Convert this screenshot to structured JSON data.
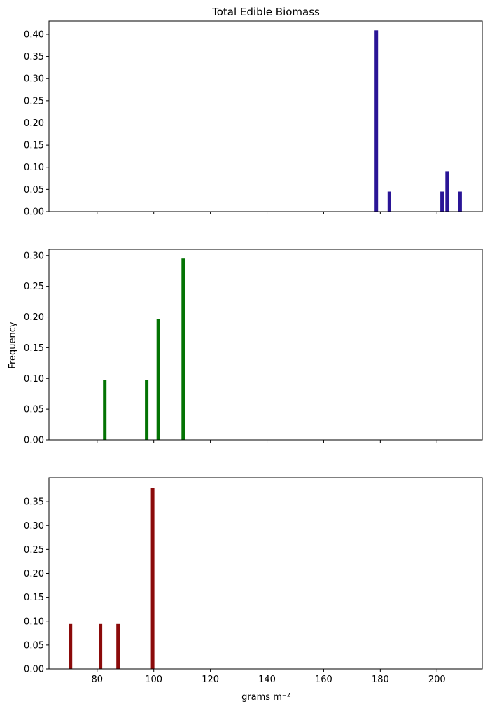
{
  "figure": {
    "title": "Total Edible Biomass",
    "ylabel": "Frequency",
    "xlabel": "grams m⁻²"
  },
  "chart_data": [
    {
      "type": "bar",
      "title": "Total Edible Biomass",
      "xlabel": "",
      "ylabel": "",
      "xlim": [
        63,
        216
      ],
      "ylim": [
        0,
        0.43
      ],
      "yticks": [
        0.0,
        0.05,
        0.1,
        0.15,
        0.2,
        0.25,
        0.3,
        0.35,
        0.4
      ],
      "ytick_labels": [
        "0.00",
        "0.05",
        "0.10",
        "0.15",
        "0.20",
        "0.25",
        "0.30",
        "0.35",
        "0.40"
      ],
      "color": "#2a1596",
      "x": [
        178.6,
        183.2,
        201.8,
        203.6,
        208.2
      ],
      "values": [
        0.409,
        0.045,
        0.045,
        0.091,
        0.045
      ]
    },
    {
      "type": "bar",
      "title": "",
      "xlabel": "",
      "ylabel": "Frequency",
      "xlim": [
        63,
        216
      ],
      "ylim": [
        0,
        0.31
      ],
      "yticks": [
        0.0,
        0.05,
        0.1,
        0.15,
        0.2,
        0.25,
        0.3
      ],
      "ytick_labels": [
        "0.00",
        "0.05",
        "0.10",
        "0.15",
        "0.20",
        "0.25",
        "0.30"
      ],
      "color": "#037303",
      "x": [
        82.7,
        97.5,
        101.6,
        110.4
      ],
      "values": [
        0.097,
        0.097,
        0.196,
        0.295
      ]
    },
    {
      "type": "bar",
      "title": "",
      "xlabel": "grams m⁻²",
      "ylabel": "",
      "xlim": [
        63,
        216
      ],
      "ylim": [
        0,
        0.4
      ],
      "yticks": [
        0.0,
        0.05,
        0.1,
        0.15,
        0.2,
        0.25,
        0.3,
        0.35
      ],
      "ytick_labels": [
        "0.00",
        "0.05",
        "0.10",
        "0.15",
        "0.20",
        "0.25",
        "0.30",
        "0.35"
      ],
      "xticks": [
        80,
        100,
        120,
        140,
        160,
        180,
        200
      ],
      "xtick_labels": [
        "80",
        "100",
        "120",
        "140",
        "160",
        "180",
        "200"
      ],
      "color": "#8b0a0a",
      "x": [
        70.6,
        81.2,
        87.4,
        99.6
      ],
      "values": [
        0.094,
        0.094,
        0.094,
        0.378
      ]
    }
  ]
}
